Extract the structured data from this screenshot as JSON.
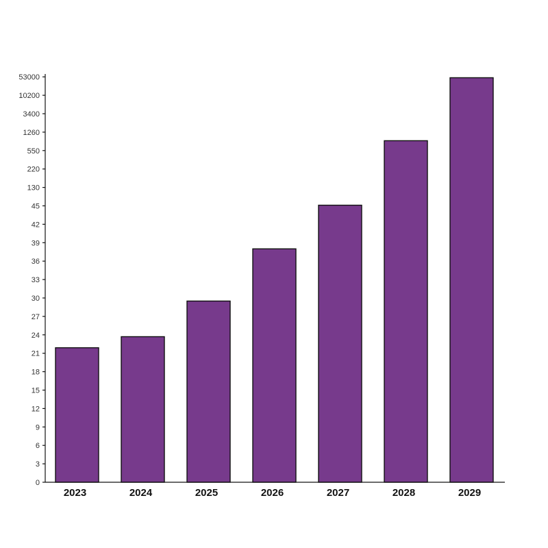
{
  "chart_data": {
    "type": "bar",
    "title": "",
    "xlabel": "",
    "ylabel": "",
    "categories": [
      "2023",
      "2024",
      "2025",
      "2026",
      "2027",
      "2028",
      "2029"
    ],
    "values": [
      21.9,
      23.7,
      29.5,
      38.0,
      48,
      930,
      51000
    ],
    "y_tick_labels": [
      "0",
      "3",
      "6",
      "9",
      "12",
      "15",
      "18",
      "21",
      "24",
      "27",
      "30",
      "33",
      "36",
      "39",
      "42",
      "45",
      "130",
      "220",
      "550",
      "1260",
      "3400",
      "10200",
      "53000"
    ],
    "y_tick_values": [
      0,
      3,
      6,
      9,
      12,
      15,
      18,
      21,
      24,
      27,
      30,
      33,
      36,
      39,
      42,
      45,
      130,
      220,
      550,
      1260,
      3400,
      10200,
      53000
    ],
    "y_scale": "non-uniform (equal spacing between listed ticks)",
    "ylim": [
      0,
      53000
    ],
    "grid": false,
    "legend": "none",
    "bar_color": "#773a8c",
    "bar_edge_color": "#111111"
  }
}
